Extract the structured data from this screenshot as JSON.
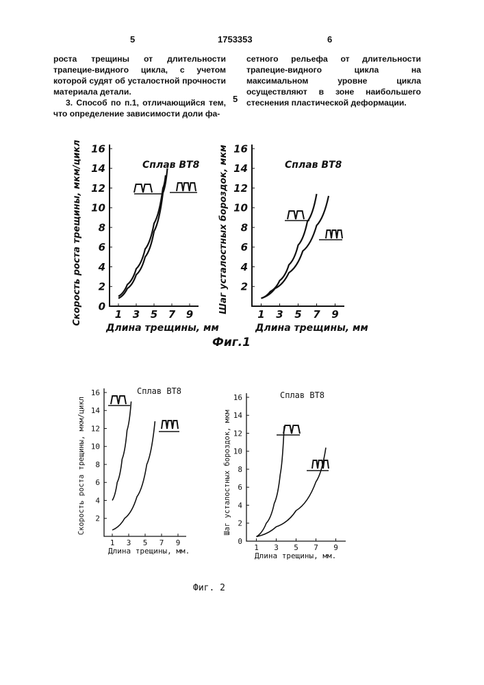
{
  "header": {
    "left_col_num": "5",
    "patent_number": "1753353",
    "right_col_num": "6"
  },
  "text": {
    "left_p1": "роста трещины от длительности трапецие-видного цикла, с учетом которой судят об усталостной прочности материала детали.",
    "left_p2": "3. Способ по п.1, отличающийся тем, что определение зависимости доли фа-",
    "right_p1": "сетного рельефа от длительности трапецие-видного цикла на максимальном уровне цикла осуществляют в зоне наибольшего стеснения пластической деформации.",
    "line_marker": "5"
  },
  "fig1": {
    "caption": "Фиг.1",
    "charts": [
      {
        "title": "Сплав ВТ8",
        "ylabel": "Скорость роста трещины, мкм/цикл",
        "xlabel": "Длина трещины, мм",
        "series_labels": [
          "ЛЛ",
          "ЛЛЛ"
        ]
      },
      {
        "title": "Сплав ВТ8",
        "ylabel": "Шаг усталостных бороздок, мкм",
        "xlabel": "Длина трещины, мм",
        "series_labels": [
          "ЛЛ",
          "ЛЛЛ"
        ]
      }
    ]
  },
  "fig2": {
    "caption": "Фиг. 2",
    "charts": [
      {
        "title": "Сплав ВТ8",
        "ylabel": "Скорость роста трещины, мкм/цикл",
        "xlabel": "Длина трещины, мм."
      },
      {
        "title": "Сплав ВТ8",
        "ylabel": "Шаг усталостных бороздок, мкм",
        "xlabel": "Длина трещины, мм."
      }
    ]
  },
  "chart_data": [
    {
      "type": "line",
      "title": "Сплав ВТ8",
      "xlabel": "Длина трещины, мм",
      "ylabel": "Скорость роста трещины, мкм/цикл",
      "xticks": [
        "1",
        "3",
        "5",
        "7",
        "9"
      ],
      "yticks": [
        "0",
        "2",
        "4",
        "6",
        "8",
        "10",
        "12",
        "14",
        "16"
      ],
      "ylim": [
        0,
        16
      ],
      "series": [
        {
          "name": "ЛЛ",
          "x": [
            1.0,
            2.0,
            3.0,
            4.0,
            5.0,
            6.0,
            6.5
          ],
          "y": [
            0.8,
            1.8,
            3.2,
            5.0,
            7.6,
            11.5,
            14.0
          ]
        },
        {
          "name": "ЛЛЛ",
          "x": [
            1.0,
            2.0,
            3.0,
            4.0,
            5.0,
            6.0,
            6.3
          ],
          "y": [
            1.0,
            2.2,
            3.8,
            5.8,
            8.4,
            12.0,
            13.3
          ]
        }
      ]
    },
    {
      "type": "line",
      "title": "Сплав ВТ8",
      "xlabel": "Длина трещины, мм",
      "ylabel": "Шаг усталостных бороздок, мкм",
      "xticks": [
        "1",
        "3",
        "5",
        "7",
        "9"
      ],
      "yticks": [
        "2",
        "4",
        "6",
        "8",
        "10",
        "12",
        "14",
        "16"
      ],
      "ylim": [
        0,
        16
      ],
      "series": [
        {
          "name": "ЛЛ",
          "x": [
            1.0,
            2.0,
            3.0,
            4.0,
            5.0,
            6.0,
            7.0
          ],
          "y": [
            0.8,
            1.5,
            2.6,
            4.2,
            6.2,
            8.6,
            11.4
          ]
        },
        {
          "name": "ЛЛЛ",
          "x": [
            1.0,
            2.5,
            4.0,
            5.5,
            7.0,
            8.3
          ],
          "y": [
            0.8,
            1.8,
            3.4,
            5.6,
            8.2,
            11.2
          ]
        }
      ]
    },
    {
      "type": "line",
      "title": "Сплав ВТ8",
      "xlabel": "Длина трещины, мм.",
      "ylabel": "Скорость роста трещины, мкм/цикл",
      "xticks": [
        "1",
        "3",
        "5",
        "7",
        "9"
      ],
      "yticks": [
        "2",
        "4",
        "6",
        "8",
        "10",
        "12",
        "14",
        "16"
      ],
      "ylim": [
        0,
        16
      ],
      "series": [
        {
          "name": "ЛЛ",
          "x": [
            1.0,
            1.6,
            2.2,
            2.8,
            3.3
          ],
          "y": [
            4.0,
            6.0,
            8.6,
            11.8,
            15.0
          ]
        },
        {
          "name": "ЛЛЛ",
          "x": [
            1.0,
            2.5,
            4.0,
            5.2,
            6.2
          ],
          "y": [
            0.7,
            2.0,
            4.4,
            8.0,
            12.8
          ]
        }
      ]
    },
    {
      "type": "line",
      "title": "Сплав ВТ8",
      "xlabel": "Длина трещины, мм.",
      "ylabel": "Шаг усталостных бороздок, мкм",
      "xticks": [
        "1",
        "3",
        "5",
        "7",
        "9"
      ],
      "yticks": [
        "0",
        "2",
        "4",
        "6",
        "8",
        "10",
        "12",
        "14",
        "16"
      ],
      "ylim": [
        0,
        16
      ],
      "series": [
        {
          "name": "ЛЛ",
          "x": [
            1.0,
            2.0,
            2.8,
            3.4,
            3.8
          ],
          "y": [
            0.5,
            2.0,
            4.2,
            7.4,
            12.8
          ]
        },
        {
          "name": "ЛЛЛ",
          "x": [
            1.0,
            3.0,
            5.0,
            7.0,
            8.0
          ],
          "y": [
            0.5,
            1.6,
            3.4,
            6.6,
            10.4
          ]
        }
      ]
    }
  ]
}
